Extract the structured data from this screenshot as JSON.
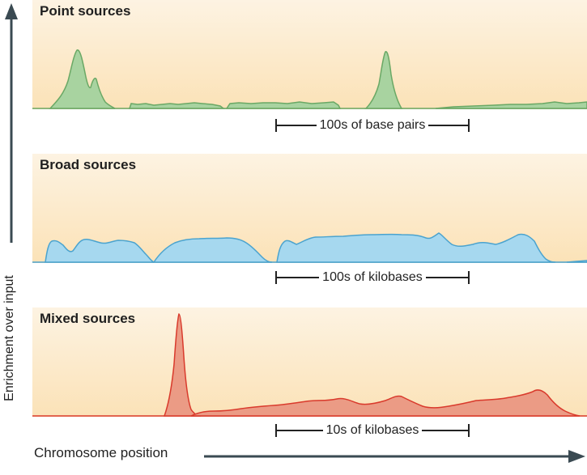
{
  "panels": {
    "point": {
      "title": "Point sources",
      "scale_label": "100s of base pairs",
      "fill": "#a8d3a0",
      "stroke": "#6aa865"
    },
    "broad": {
      "title": "Broad sources",
      "scale_label": "100s of kilobases",
      "fill": "#a6d8ef",
      "stroke": "#4aa3cf"
    },
    "mixed": {
      "title": "Mixed sources",
      "scale_label": "10s of kilobases",
      "fill": "#eb9b85",
      "stroke": "#d93a2c"
    }
  },
  "axes": {
    "y_label": "Enrichment over input",
    "x_label": "Chromosome position",
    "arrow_color": "#3a4a52"
  }
}
